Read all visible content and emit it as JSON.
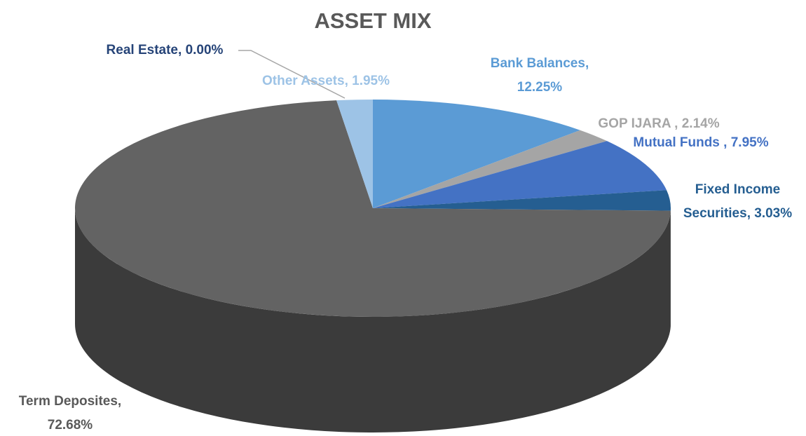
{
  "chart_data": {
    "type": "pie",
    "title": "ASSET MIX",
    "categories": [
      "Bank Balances",
      "GOP IJARA ",
      "Mutual Funds ",
      "Fixed Income Securities",
      "Term Deposites",
      "Real Estate",
      "Other Assets"
    ],
    "values": [
      12.25,
      2.14,
      7.95,
      3.03,
      72.68,
      0.0,
      1.95
    ],
    "value_labels": [
      "12.25%",
      "2.14%",
      "7.95%",
      "3.03%",
      "72.68%",
      "0.00%",
      "1.95%"
    ],
    "label_separator": ", ",
    "colors": [
      "#5b9bd5",
      "#a5a5a5",
      "#4472c4",
      "#255e91",
      "#636363",
      "#264478",
      "#9dc3e6"
    ]
  }
}
